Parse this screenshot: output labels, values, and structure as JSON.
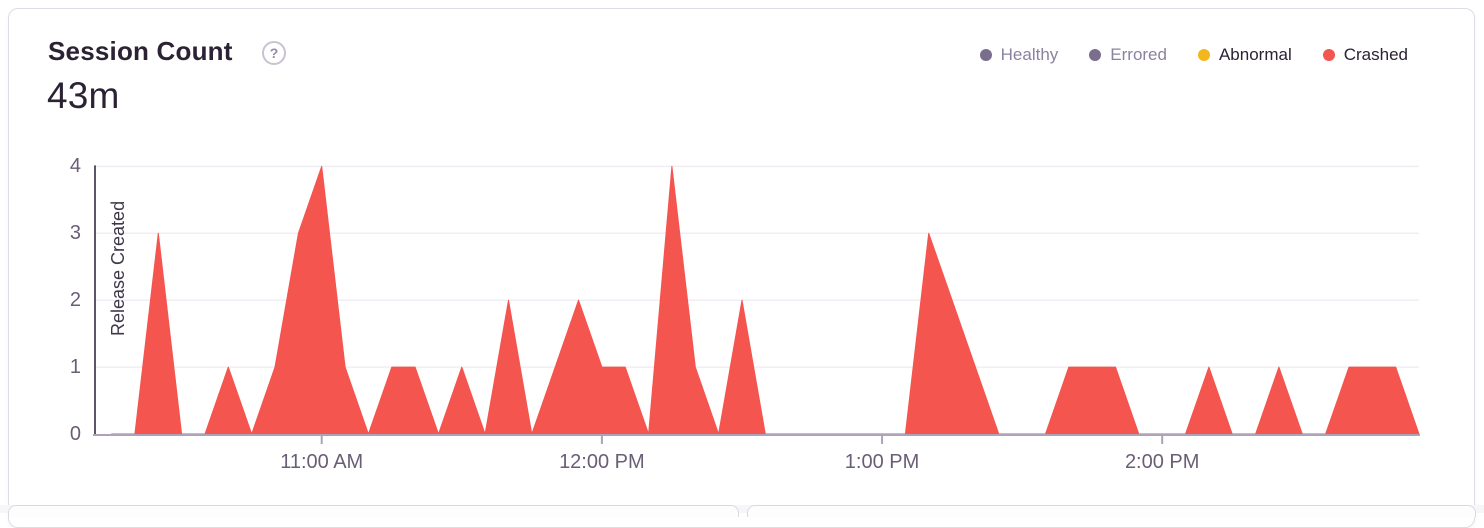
{
  "card": {
    "title": "Session Count",
    "help_icon": "?",
    "total": "43m"
  },
  "legend": {
    "items": [
      {
        "label": "Healthy",
        "color": "#7A6E8F",
        "selected": false
      },
      {
        "label": "Errored",
        "color": "#7A6E8F",
        "selected": false
      },
      {
        "label": "Abnormal",
        "color": "#F1B71C",
        "selected": true
      },
      {
        "label": "Crashed",
        "color": "#F4554E",
        "selected": true
      }
    ]
  },
  "chart_data": {
    "type": "area",
    "title": "Session Count",
    "total_label": "43m",
    "ylim": [
      0,
      4
    ],
    "yticks": [
      0,
      1,
      2,
      3,
      4
    ],
    "xticks": [
      "11:00 AM",
      "12:00 PM",
      "1:00 PM",
      "2:00 PM"
    ],
    "grid": "horizontal",
    "legend_position": "top-right",
    "release_marker": {
      "label": "Release Created",
      "position": "left-edge"
    },
    "colors": {
      "crashed": "#F4554E",
      "abnormal": "#F1B71C",
      "axis": "#ADA2B8",
      "axis_text": "#6A5E76",
      "release_line": "#5E5468"
    },
    "x": [
      "10:15 AM",
      "10:20 AM",
      "10:25 AM",
      "10:30 AM",
      "10:35 AM",
      "10:40 AM",
      "10:45 AM",
      "10:50 AM",
      "10:55 AM",
      "11:00 AM",
      "11:05 AM",
      "11:10 AM",
      "11:15 AM",
      "11:20 AM",
      "11:25 AM",
      "11:30 AM",
      "11:35 AM",
      "11:40 AM",
      "11:45 AM",
      "11:50 AM",
      "11:55 AM",
      "12:00 PM",
      "12:05 PM",
      "12:10 PM",
      "12:15 PM",
      "12:20 PM",
      "12:25 PM",
      "12:30 PM",
      "12:35 PM",
      "12:40 PM",
      "12:45 PM",
      "12:50 PM",
      "12:55 PM",
      "1:00 PM",
      "1:05 PM",
      "1:10 PM",
      "1:15 PM",
      "1:20 PM",
      "1:25 PM",
      "1:30 PM",
      "1:35 PM",
      "1:40 PM",
      "1:45 PM",
      "1:50 PM",
      "1:55 PM",
      "2:00 PM",
      "2:05 PM",
      "2:10 PM",
      "2:15 PM",
      "2:20 PM",
      "2:25 PM",
      "2:30 PM",
      "2:35 PM",
      "2:40 PM",
      "2:45 PM",
      "2:50 PM",
      "2:55 PM"
    ],
    "series": [
      {
        "name": "Crashed",
        "color": "#F4554E",
        "values": [
          0,
          0,
          3,
          0,
          0,
          1,
          0,
          1,
          3,
          4,
          1,
          0,
          1,
          1,
          0,
          1,
          0,
          2,
          0,
          1,
          2,
          1,
          1,
          0,
          4,
          1,
          0,
          2,
          0,
          0,
          0,
          0,
          0,
          0,
          0,
          3,
          2,
          1,
          0,
          0,
          0,
          1,
          1,
          1,
          0,
          0,
          0,
          1,
          0,
          0,
          1,
          0,
          0,
          1,
          1,
          1,
          0
        ]
      }
    ]
  }
}
